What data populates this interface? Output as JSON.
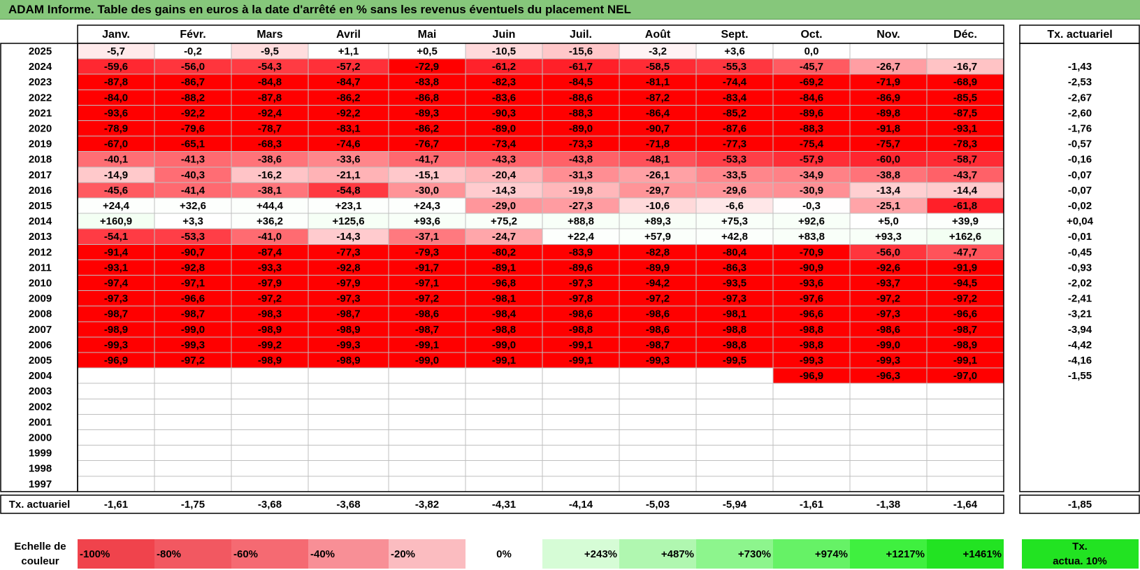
{
  "title": "ADAM Informe. Table des gains en euros à la date d'arrêté en % sans les revenus éventuels du placement NEL",
  "months": [
    "Janv.",
    "Févr.",
    "Mars",
    "Avril",
    "Mai",
    "Juin",
    "Juil.",
    "Août",
    "Sept.",
    "Oct.",
    "Nov.",
    "Déc."
  ],
  "tx_header": "Tx. actuariel",
  "rows": [
    {
      "year": "2025",
      "values": [
        "-5,7",
        "-0,2",
        "-9,5",
        "+1,1",
        "+0,5",
        "-10,5",
        "-15,6",
        "-3,2",
        "+3,6",
        "0,0",
        "",
        ""
      ],
      "tx": ""
    },
    {
      "year": "2024",
      "values": [
        "-59,6",
        "-56,0",
        "-54,3",
        "-57,2",
        "-72,9",
        "-61,2",
        "-61,7",
        "-58,5",
        "-55,3",
        "-45,7",
        "-26,7",
        "-16,7"
      ],
      "tx": "-1,43"
    },
    {
      "year": "2023",
      "values": [
        "-87,8",
        "-86,7",
        "-84,8",
        "-84,7",
        "-83,8",
        "-82,3",
        "-84,5",
        "-81,1",
        "-74,4",
        "-69,2",
        "-71,9",
        "-68,9"
      ],
      "tx": "-2,53"
    },
    {
      "year": "2022",
      "values": [
        "-84,0",
        "-88,2",
        "-87,8",
        "-86,2",
        "-86,8",
        "-83,6",
        "-88,6",
        "-87,2",
        "-83,4",
        "-84,6",
        "-86,9",
        "-85,5"
      ],
      "tx": "-2,67"
    },
    {
      "year": "2021",
      "values": [
        "-93,6",
        "-92,2",
        "-92,4",
        "-92,2",
        "-89,3",
        "-90,3",
        "-88,3",
        "-86,4",
        "-85,2",
        "-89,6",
        "-89,8",
        "-87,5"
      ],
      "tx": "-2,60"
    },
    {
      "year": "2020",
      "values": [
        "-78,9",
        "-79,6",
        "-78,7",
        "-83,1",
        "-86,2",
        "-89,0",
        "-89,0",
        "-90,7",
        "-87,6",
        "-88,3",
        "-91,8",
        "-93,1"
      ],
      "tx": "-1,76"
    },
    {
      "year": "2019",
      "values": [
        "-67,0",
        "-65,1",
        "-68,3",
        "-74,6",
        "-76,7",
        "-73,4",
        "-73,3",
        "-71,8",
        "-77,3",
        "-75,4",
        "-75,7",
        "-78,3"
      ],
      "tx": "-0,57"
    },
    {
      "year": "2018",
      "values": [
        "-40,1",
        "-41,3",
        "-38,6",
        "-33,6",
        "-41,7",
        "-43,3",
        "-43,8",
        "-48,1",
        "-53,3",
        "-57,9",
        "-60,0",
        "-58,7"
      ],
      "tx": "-0,16"
    },
    {
      "year": "2017",
      "values": [
        "-14,9",
        "-40,3",
        "-16,2",
        "-21,1",
        "-15,1",
        "-20,4",
        "-31,3",
        "-26,1",
        "-33,5",
        "-34,9",
        "-38,8",
        "-43,7"
      ],
      "tx": "-0,07"
    },
    {
      "year": "2016",
      "values": [
        "-45,6",
        "-41,4",
        "-38,1",
        "-54,8",
        "-30,0",
        "-14,3",
        "-19,8",
        "-29,7",
        "-29,6",
        "-30,9",
        "-13,4",
        "-14,4"
      ],
      "tx": "-0,07"
    },
    {
      "year": "2015",
      "values": [
        "+24,4",
        "+32,6",
        "+44,4",
        "+23,1",
        "+24,3",
        "-29,0",
        "-27,3",
        "-10,6",
        "-6,6",
        "-0,3",
        "-25,1",
        "-61,8"
      ],
      "tx": "-0,02"
    },
    {
      "year": "2014",
      "values": [
        "+160,9",
        "+3,3",
        "+36,2",
        "+125,6",
        "+93,6",
        "+75,2",
        "+88,8",
        "+89,3",
        "+75,3",
        "+92,6",
        "+5,0",
        "+39,9"
      ],
      "tx": "+0,04"
    },
    {
      "year": "2013",
      "values": [
        "-54,1",
        "-53,3",
        "-41,0",
        "-14,3",
        "-37,1",
        "-24,7",
        "+22,4",
        "+57,9",
        "+42,8",
        "+83,8",
        "+93,3",
        "+162,6"
      ],
      "tx": "-0,01"
    },
    {
      "year": "2012",
      "values": [
        "-91,4",
        "-90,7",
        "-87,4",
        "-77,3",
        "-79,3",
        "-80,2",
        "-83,9",
        "-82,8",
        "-80,4",
        "-70,9",
        "-56,0",
        "-47,7"
      ],
      "tx": "-0,45"
    },
    {
      "year": "2011",
      "values": [
        "-93,1",
        "-92,8",
        "-93,3",
        "-92,8",
        "-91,7",
        "-89,1",
        "-89,6",
        "-89,9",
        "-86,3",
        "-90,9",
        "-92,6",
        "-91,9"
      ],
      "tx": "-0,93"
    },
    {
      "year": "2010",
      "values": [
        "-97,4",
        "-97,1",
        "-97,9",
        "-97,9",
        "-97,1",
        "-96,8",
        "-97,3",
        "-94,2",
        "-93,5",
        "-93,6",
        "-93,7",
        "-94,5"
      ],
      "tx": "-2,02"
    },
    {
      "year": "2009",
      "values": [
        "-97,3",
        "-96,6",
        "-97,2",
        "-97,3",
        "-97,2",
        "-98,1",
        "-97,8",
        "-97,2",
        "-97,3",
        "-97,6",
        "-97,2",
        "-97,2"
      ],
      "tx": "-2,41"
    },
    {
      "year": "2008",
      "values": [
        "-98,7",
        "-98,7",
        "-98,3",
        "-98,7",
        "-98,6",
        "-98,4",
        "-98,6",
        "-98,6",
        "-98,1",
        "-96,6",
        "-97,3",
        "-96,6"
      ],
      "tx": "-3,21"
    },
    {
      "year": "2007",
      "values": [
        "-98,9",
        "-99,0",
        "-98,9",
        "-98,9",
        "-98,7",
        "-98,8",
        "-98,8",
        "-98,6",
        "-98,8",
        "-98,8",
        "-98,6",
        "-98,7"
      ],
      "tx": "-3,94"
    },
    {
      "year": "2006",
      "values": [
        "-99,3",
        "-99,3",
        "-99,2",
        "-99,3",
        "-99,1",
        "-99,0",
        "-99,1",
        "-98,7",
        "-98,8",
        "-98,8",
        "-99,0",
        "-98,9"
      ],
      "tx": "-4,42"
    },
    {
      "year": "2005",
      "values": [
        "-96,9",
        "-97,2",
        "-98,9",
        "-98,9",
        "-99,0",
        "-99,1",
        "-99,1",
        "-99,3",
        "-99,5",
        "-99,3",
        "-99,3",
        "-99,1"
      ],
      "tx": "-4,16"
    },
    {
      "year": "2004",
      "values": [
        "",
        "",
        "",
        "",
        "",
        "",
        "",
        "",
        "",
        "-96,9",
        "-96,3",
        "-97,0"
      ],
      "tx": "-1,55"
    },
    {
      "year": "2003",
      "values": [
        "",
        "",
        "",
        "",
        "",
        "",
        "",
        "",
        "",
        "",
        "",
        ""
      ],
      "tx": ""
    },
    {
      "year": "2002",
      "values": [
        "",
        "",
        "",
        "",
        "",
        "",
        "",
        "",
        "",
        "",
        "",
        ""
      ],
      "tx": ""
    },
    {
      "year": "2001",
      "values": [
        "",
        "",
        "",
        "",
        "",
        "",
        "",
        "",
        "",
        "",
        "",
        ""
      ],
      "tx": ""
    },
    {
      "year": "2000",
      "values": [
        "",
        "",
        "",
        "",
        "",
        "",
        "",
        "",
        "",
        "",
        "",
        ""
      ],
      "tx": ""
    },
    {
      "year": "1999",
      "values": [
        "",
        "",
        "",
        "",
        "",
        "",
        "",
        "",
        "",
        "",
        "",
        ""
      ],
      "tx": ""
    },
    {
      "year": "1998",
      "values": [
        "",
        "",
        "",
        "",
        "",
        "",
        "",
        "",
        "",
        "",
        "",
        ""
      ],
      "tx": ""
    },
    {
      "year": "1997",
      "values": [
        "",
        "",
        "",
        "",
        "",
        "",
        "",
        "",
        "",
        "",
        "",
        ""
      ],
      "tx": ""
    }
  ],
  "footer": {
    "label": "Tx. actuariel",
    "values": [
      "-1,61",
      "-1,75",
      "-3,68",
      "-3,68",
      "-3,82",
      "-4,31",
      "-4,14",
      "-5,03",
      "-5,94",
      "-1,61",
      "-1,38",
      "-1,64"
    ],
    "total": "-1,85"
  },
  "scale": {
    "label_line1": "Echelle de",
    "label_line2": "couleur",
    "steps": [
      {
        "label": "-100%",
        "color": "#f0434c"
      },
      {
        "label": "-80%",
        "color": "#f25861"
      },
      {
        "label": "-60%",
        "color": "#f56a72"
      },
      {
        "label": "-40%",
        "color": "#f88f96"
      },
      {
        "label": "-20%",
        "color": "#fbbcc0"
      },
      {
        "label": "0%",
        "color": "#ffffff"
      },
      {
        "label": "+243%",
        "color": "#d6fcd6"
      },
      {
        "label": "+487%",
        "color": "#b0f7b0"
      },
      {
        "label": "+730%",
        "color": "#8df58d"
      },
      {
        "label": "+974%",
        "color": "#66f266"
      },
      {
        "label": "+1217%",
        "color": "#3ff03f"
      },
      {
        "label": "+1461%",
        "color": "#22e322"
      }
    ],
    "tx_box_line1": "Tx.",
    "tx_box_line2": "actua. 10%",
    "tx_box_color": "#22e322"
  }
}
